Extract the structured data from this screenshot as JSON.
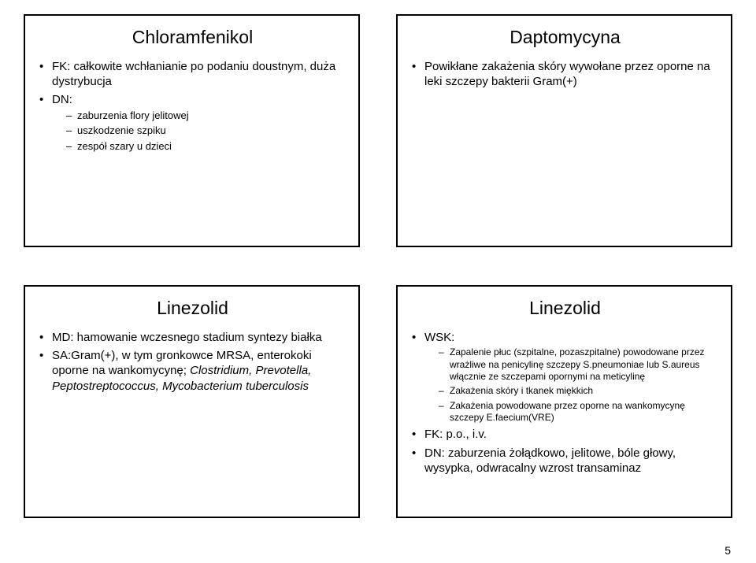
{
  "page_number": "5",
  "panels": {
    "top_left": {
      "title": "Chloramfenikol",
      "items": [
        {
          "text": "FK: całkowite wchłanianie po podaniu doustnym, duża dystrybucja"
        },
        {
          "text": "DN:",
          "sub": [
            "zaburzenia flory jelitowej",
            "uszkodzenie szpiku",
            "zespół szary u dzieci"
          ]
        }
      ]
    },
    "top_right": {
      "title": "Daptomycyna",
      "items": [
        {
          "text": "Powikłane zakażenia skóry wywołane przez oporne na leki szczepy bakterii Gram(+)"
        }
      ]
    },
    "bottom_left": {
      "title": "Linezolid",
      "items": [
        {
          "text": "MD: hamowanie wczesnego stadium syntezy białka"
        },
        {
          "text": "SA:Gram(+), w tym gronkowce MRSA, enterokoki oporne na wankomycynę; Clostridium, Prevotella, Peptostreptococcus, Mycobacterium tuberculosis",
          "italic_tail": true
        }
      ]
    },
    "bottom_right": {
      "title": "Linezolid",
      "items": [
        {
          "text": "WSK:",
          "sub": [
            "Zapalenie płuc (szpitalne, pozaszpitalne) powodowane przez wrażliwe na penicylinę szczepy S.pneumoniae lub S.aureus włącznie ze szczepami opornymi na meticylinę",
            "Zakażenia skóry i tkanek miękkich",
            "Zakażenia powodowane przez oporne na wankomycynę szczepy E.faecium(VRE)"
          ]
        },
        {
          "text": "FK: p.o., i.v."
        },
        {
          "text": "DN: zaburzenia żołądkowo, jelitowe, bóle głowy, wysypka, odwracalny wzrost transaminaz"
        }
      ]
    }
  }
}
